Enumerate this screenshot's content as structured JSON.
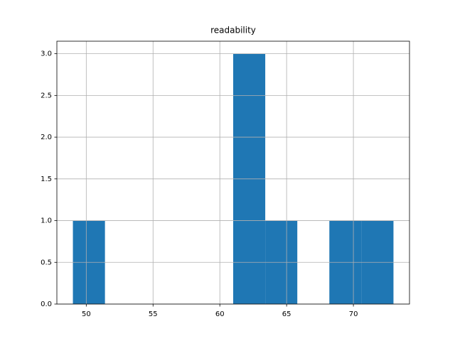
{
  "chart_data": {
    "type": "histogram",
    "title": "readability",
    "bins": [
      49,
      51.4,
      53.8,
      56.2,
      58.6,
      61,
      63.4,
      65.8,
      68.2,
      70.6,
      73
    ],
    "values": [
      1,
      0,
      0,
      0,
      0,
      3,
      1,
      0,
      1,
      1
    ],
    "color": "#1f77b4",
    "xlim": [
      47.8,
      74.2
    ],
    "xticks": [
      50,
      55,
      60,
      65,
      70
    ],
    "ylim": [
      0,
      3.15
    ],
    "yticks": [
      {
        "value": 0,
        "label": "0.0"
      },
      {
        "value": 0.5,
        "label": "0.5"
      },
      {
        "value": 1,
        "label": "1.0"
      },
      {
        "value": 1.5,
        "label": "1.5"
      },
      {
        "value": 2,
        "label": "2.0"
      },
      {
        "value": 2.5,
        "label": "2.5"
      },
      {
        "value": 3,
        "label": "3.0"
      }
    ],
    "grid": true
  }
}
